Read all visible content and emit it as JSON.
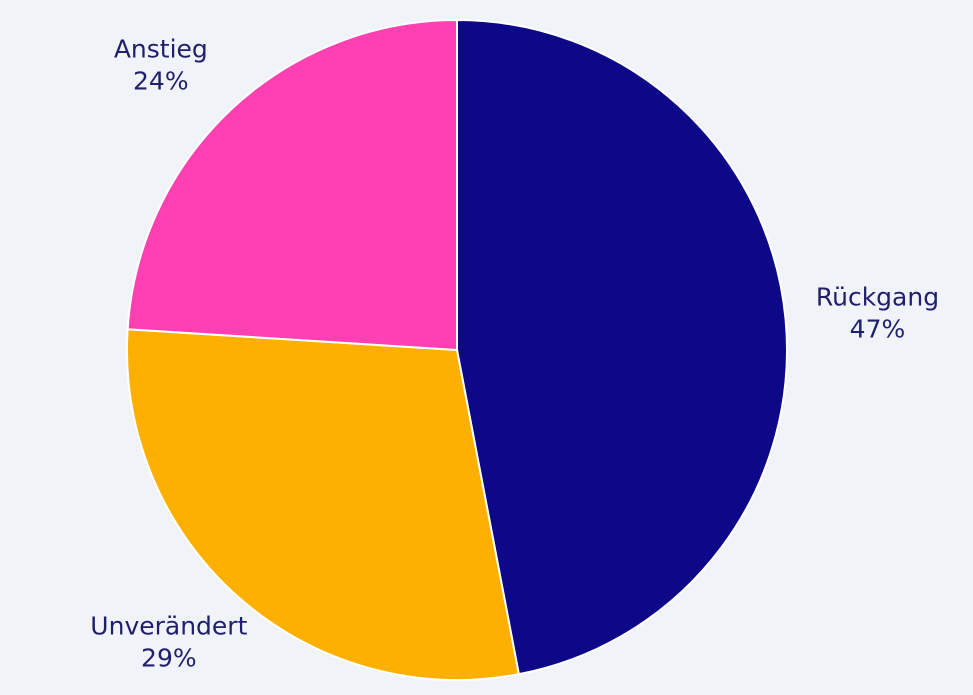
{
  "chart_data": {
    "type": "pie",
    "categories": [
      "Rückgang",
      "Unverändert",
      "Anstieg"
    ],
    "values": [
      47,
      29,
      24
    ],
    "value_labels": [
      "47%",
      "29%",
      "24%"
    ],
    "colors": [
      "#0d0887",
      "#feb000",
      "#ff40b3"
    ]
  }
}
